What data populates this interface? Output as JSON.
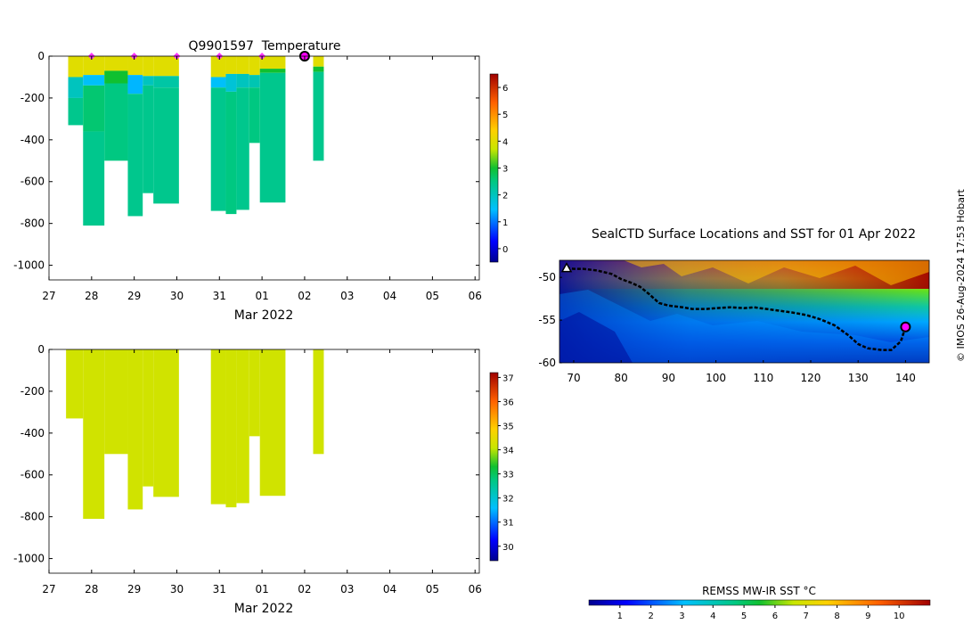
{
  "credit": "© IMOS 26-Aug-2024 17:53 Hobart",
  "chart_data": [
    {
      "type": "heatmap",
      "name": "temperature-section",
      "title": "Q9901597  Temperature",
      "xlabel": "Mar 2022",
      "ylabel": "",
      "xtick_labels": [
        "27",
        "28",
        "29",
        "30",
        "31",
        "01",
        "02",
        "03",
        "04",
        "05",
        "06"
      ],
      "xlim_days": [
        27,
        37.1
      ],
      "ylim": [
        -1070,
        0
      ],
      "yticks": [
        0,
        -200,
        -400,
        -600,
        -800,
        -1000
      ],
      "colorbar": {
        "range": [
          -0.5,
          6.5
        ],
        "ticks": [
          0,
          1,
          2,
          3,
          4,
          5,
          6
        ]
      },
      "profiles": [
        {
          "x0": 27.45,
          "x1": 27.8,
          "bottom": -330,
          "bands": [
            [
              0,
              -100,
              4.0
            ],
            [
              -100,
              -200,
              2.0
            ],
            [
              -200,
              -330,
              2.4
            ]
          ]
        },
        {
          "x0": 27.8,
          "x1": 28.3,
          "bottom": -810,
          "bands": [
            [
              0,
              -90,
              4.0
            ],
            [
              -90,
              -140,
              1.5
            ],
            [
              -140,
              -360,
              2.6
            ],
            [
              -360,
              -810,
              2.4
            ]
          ]
        },
        {
          "x0": 28.3,
          "x1": 28.85,
          "bottom": -500,
          "bands": [
            [
              0,
              -70,
              4.0
            ],
            [
              -70,
              -130,
              3.0
            ],
            [
              -130,
              -500,
              2.5
            ]
          ]
        },
        {
          "x0": 28.85,
          "x1": 29.2,
          "bottom": -765,
          "bands": [
            [
              0,
              -90,
              4.0
            ],
            [
              -90,
              -180,
              1.4
            ],
            [
              -180,
              -765,
              2.4
            ]
          ]
        },
        {
          "x0": 29.2,
          "x1": 29.45,
          "bottom": -655,
          "bands": [
            [
              0,
              -95,
              4.0
            ],
            [
              -95,
              -140,
              2.0
            ],
            [
              -140,
              -655,
              2.4
            ]
          ]
        },
        {
          "x0": 29.45,
          "x1": 30.05,
          "bottom": -705,
          "bands": [
            [
              0,
              -95,
              4.0
            ],
            [
              -95,
              -150,
              2.2
            ],
            [
              -150,
              -705,
              2.4
            ]
          ]
        },
        {
          "x0": 30.8,
          "x1": 31.15,
          "bottom": -740,
          "bands": [
            [
              0,
              -100,
              4.0
            ],
            [
              -100,
              -150,
              1.5
            ],
            [
              -150,
              -740,
              2.4
            ]
          ]
        },
        {
          "x0": 31.15,
          "x1": 31.4,
          "bottom": -755,
          "bands": [
            [
              0,
              -85,
              4.0
            ],
            [
              -85,
              -170,
              1.8
            ],
            [
              -170,
              -755,
              2.5
            ]
          ]
        },
        {
          "x0": 31.4,
          "x1": 31.7,
          "bottom": -735,
          "bands": [
            [
              0,
              -85,
              4.0
            ],
            [
              -85,
              -150,
              2.0
            ],
            [
              -150,
              -735,
              2.4
            ]
          ]
        },
        {
          "x0": 31.7,
          "x1": 31.95,
          "bottom": -415,
          "bands": [
            [
              0,
              -90,
              4.0
            ],
            [
              -90,
              -150,
              2.1
            ],
            [
              -150,
              -415,
              2.5
            ]
          ]
        },
        {
          "x0": 31.95,
          "x1": 32.55,
          "bottom": -700,
          "bands": [
            [
              0,
              -60,
              4.0
            ],
            [
              -60,
              -80,
              3.0
            ],
            [
              -80,
              -700,
              2.4
            ]
          ]
        },
        {
          "x0": 33.2,
          "x1": 33.45,
          "bottom": -500,
          "bands": [
            [
              0,
              -50,
              4.0
            ],
            [
              -50,
              -75,
              3.0
            ],
            [
              -75,
              -500,
              2.4
            ]
          ]
        }
      ],
      "surface_markers": [
        28,
        29,
        30,
        31,
        32
      ],
      "current_marker": 33
    },
    {
      "type": "heatmap",
      "name": "salinity-section",
      "title": "",
      "xlabel": "Mar 2022",
      "ylabel": "",
      "xtick_labels": [
        "27",
        "28",
        "29",
        "30",
        "31",
        "01",
        "02",
        "03",
        "04",
        "05",
        "06"
      ],
      "xlim_days": [
        27,
        37.1
      ],
      "ylim": [
        -1070,
        0
      ],
      "yticks": [
        0,
        -200,
        -400,
        -600,
        -800,
        -1000
      ],
      "colorbar": {
        "range": [
          29.4,
          37.2
        ],
        "ticks": [
          30,
          31,
          32,
          33,
          34,
          35,
          36,
          37
        ]
      },
      "profiles": [
        {
          "x0": 27.4,
          "x1": 27.8,
          "bottom": -330,
          "bands": [
            [
              0,
              -330,
              34.2
            ]
          ]
        },
        {
          "x0": 27.8,
          "x1": 28.3,
          "bottom": -810,
          "bands": [
            [
              0,
              -810,
              34.2
            ]
          ]
        },
        {
          "x0": 28.3,
          "x1": 28.85,
          "bottom": -500,
          "bands": [
            [
              0,
              -500,
              34.2
            ]
          ]
        },
        {
          "x0": 28.85,
          "x1": 29.2,
          "bottom": -765,
          "bands": [
            [
              0,
              -765,
              34.2
            ]
          ]
        },
        {
          "x0": 29.2,
          "x1": 29.45,
          "bottom": -655,
          "bands": [
            [
              0,
              -655,
              34.2
            ]
          ]
        },
        {
          "x0": 29.45,
          "x1": 30.05,
          "bottom": -705,
          "bands": [
            [
              0,
              -705,
              34.2
            ]
          ]
        },
        {
          "x0": 30.8,
          "x1": 31.15,
          "bottom": -740,
          "bands": [
            [
              0,
              -740,
              34.2
            ]
          ]
        },
        {
          "x0": 31.15,
          "x1": 31.4,
          "bottom": -755,
          "bands": [
            [
              0,
              -755,
              34.2
            ]
          ]
        },
        {
          "x0": 31.4,
          "x1": 31.7,
          "bottom": -735,
          "bands": [
            [
              0,
              -735,
              34.2
            ]
          ]
        },
        {
          "x0": 31.7,
          "x1": 31.95,
          "bottom": -415,
          "bands": [
            [
              0,
              -415,
              34.2
            ]
          ]
        },
        {
          "x0": 31.95,
          "x1": 32.55,
          "bottom": -700,
          "bands": [
            [
              0,
              -700,
              34.2
            ]
          ]
        },
        {
          "x0": 33.2,
          "x1": 33.45,
          "bottom": -500,
          "bands": [
            [
              0,
              -500,
              34.2
            ]
          ]
        }
      ]
    },
    {
      "type": "map",
      "name": "sst-map",
      "title": "SealCTD Surface Locations and SST for 01 Apr 2022",
      "xticks": [
        70,
        80,
        90,
        100,
        110,
        120,
        130,
        140
      ],
      "yticks": [
        -50,
        -55,
        -60
      ],
      "xlim": [
        67,
        145
      ],
      "ylim": [
        -60,
        -48
      ],
      "track": [
        [
          68.5,
          -48.9
        ],
        [
          70,
          -49
        ],
        [
          72,
          -49
        ],
        [
          75,
          -49.2
        ],
        [
          78,
          -49.6
        ],
        [
          80,
          -50.2
        ],
        [
          82,
          -50.6
        ],
        [
          84,
          -51.1
        ],
        [
          86,
          -52
        ],
        [
          88,
          -53
        ],
        [
          90,
          -53.3
        ],
        [
          93,
          -53.5
        ],
        [
          95,
          -53.7
        ],
        [
          98,
          -53.7
        ],
        [
          100,
          -53.6
        ],
        [
          103,
          -53.5
        ],
        [
          106,
          -53.6
        ],
        [
          108,
          -53.5
        ],
        [
          112,
          -53.8
        ],
        [
          116,
          -54.1
        ],
        [
          119,
          -54.4
        ],
        [
          122,
          -54.9
        ],
        [
          125,
          -55.6
        ],
        [
          128,
          -56.8
        ],
        [
          130,
          -57.8
        ],
        [
          132,
          -58.3
        ],
        [
          135,
          -58.5
        ],
        [
          137,
          -58.5
        ],
        [
          139,
          -57.5
        ],
        [
          140,
          -55.8
        ]
      ],
      "track_start": [
        68.5,
        -48.9
      ],
      "track_end": [
        140,
        -55.8
      ],
      "colorbar": {
        "label": "REMSS MW-IR SST °C",
        "range": [
          0,
          11
        ],
        "ticks": [
          1,
          2,
          3,
          4,
          5,
          6,
          7,
          8,
          9,
          10
        ]
      }
    }
  ]
}
